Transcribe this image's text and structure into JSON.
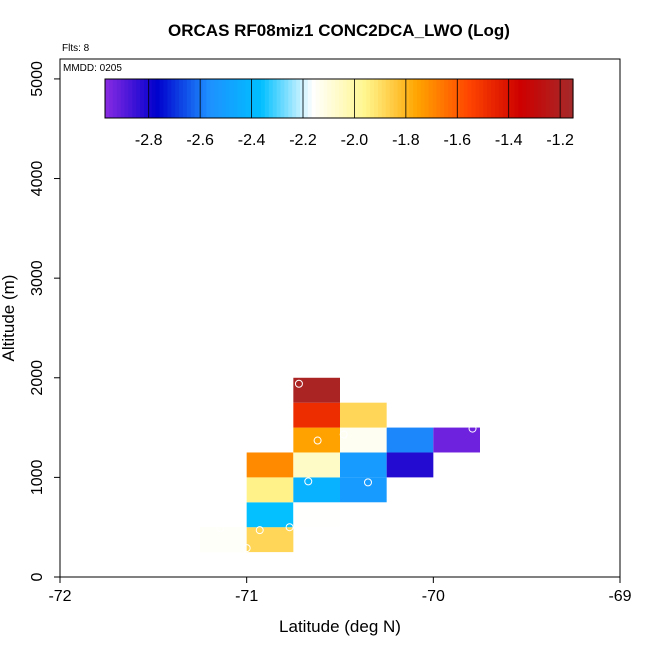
{
  "chart_data": {
    "type": "heatmap",
    "title": "ORCAS RF08miz1 CONC2DCA_LWO (Log)",
    "flights_label": "Flts: 8",
    "date_label": "MMDD: 0205",
    "xlabel": "Latitude (deg N)",
    "ylabel": "Altitude (m)",
    "xlim": [
      -72,
      -69
    ],
    "ylim": [
      0,
      5200
    ],
    "x_ticks": [
      -72,
      -71,
      -70,
      -69
    ],
    "x_tick_labels": [
      "-72",
      "-71",
      "-70",
      "-69"
    ],
    "y_ticks": [
      0,
      1000,
      2000,
      3000,
      4000,
      5000
    ],
    "y_tick_labels": [
      "0",
      "1000",
      "2000",
      "3000",
      "4000",
      "5000"
    ],
    "colorbar": {
      "range": [
        -2.97,
        -1.15
      ],
      "ticks": [
        -2.8,
        -2.6,
        -2.4,
        -2.2,
        -2.0,
        -1.8,
        -1.6,
        -1.4,
        -1.2
      ],
      "tick_labels": [
        "-2.8",
        "-2.6",
        "-2.4",
        "-2.2",
        "-2.0",
        "-1.8",
        "-1.6",
        "-1.4",
        "-1.2"
      ],
      "colors": [
        "#8a2be2",
        "#0000cd",
        "#1e90ff",
        "#00bfff",
        "#ffffff",
        "#fff68f",
        "#ffa500",
        "#ff4500",
        "#cd0000",
        "#a52a2a"
      ]
    },
    "cells": [
      {
        "x0": -71.25,
        "x1": -71.0,
        "y0": 250,
        "y1": 500,
        "value": -2.15
      },
      {
        "x0": -71.0,
        "x1": -70.75,
        "y0": 250,
        "y1": 500,
        "value": -1.88
      },
      {
        "x0": -71.0,
        "x1": -70.75,
        "y0": 500,
        "y1": 750,
        "value": -2.36
      },
      {
        "x0": -70.75,
        "x1": -70.5,
        "y0": 500,
        "y1": 750,
        "value": -2.16
      },
      {
        "x0": -71.0,
        "x1": -70.75,
        "y0": 750,
        "y1": 1000,
        "value": -1.95
      },
      {
        "x0": -70.75,
        "x1": -70.5,
        "y0": 750,
        "y1": 1000,
        "value": -2.42
      },
      {
        "x0": -70.5,
        "x1": -70.25,
        "y0": 750,
        "y1": 1000,
        "value": -2.52
      },
      {
        "x0": -71.0,
        "x1": -70.75,
        "y0": 1000,
        "y1": 1250,
        "value": -1.7
      },
      {
        "x0": -70.75,
        "x1": -70.5,
        "y0": 1000,
        "y1": 1250,
        "value": -2.06
      },
      {
        "x0": -70.5,
        "x1": -70.25,
        "y0": 1000,
        "y1": 1250,
        "value": -2.52
      },
      {
        "x0": -70.25,
        "x1": -70.0,
        "y0": 1000,
        "y1": 1250,
        "value": -2.82
      },
      {
        "x0": -70.75,
        "x1": -70.5,
        "y0": 1250,
        "y1": 1500,
        "value": -1.75
      },
      {
        "x0": -70.5,
        "x1": -70.25,
        "y0": 1250,
        "y1": 1500,
        "value": -2.14
      },
      {
        "x0": -70.25,
        "x1": -70.0,
        "y0": 1250,
        "y1": 1500,
        "value": -2.58
      },
      {
        "x0": -70.0,
        "x1": -69.75,
        "y0": 1250,
        "y1": 1500,
        "value": -2.93
      },
      {
        "x0": -70.75,
        "x1": -70.5,
        "y0": 1500,
        "y1": 1750,
        "value": -1.48
      },
      {
        "x0": -70.5,
        "x1": -70.25,
        "y0": 1500,
        "y1": 1750,
        "value": -1.88
      },
      {
        "x0": -70.75,
        "x1": -70.5,
        "y0": 1750,
        "y1": 2000,
        "value": -1.18
      }
    ],
    "points": [
      {
        "x": -71.33,
        "y": 330
      },
      {
        "x": -71.14,
        "y": 490
      },
      {
        "x": -71.0,
        "y": 290
      },
      {
        "x": -70.93,
        "y": 470
      },
      {
        "x": -70.77,
        "y": 500
      },
      {
        "x": -70.67,
        "y": 960
      },
      {
        "x": -70.62,
        "y": 1370
      },
      {
        "x": -70.48,
        "y": 1430
      },
      {
        "x": -70.35,
        "y": 950
      },
      {
        "x": -70.72,
        "y": 1940
      },
      {
        "x": -69.79,
        "y": 1490
      }
    ]
  }
}
